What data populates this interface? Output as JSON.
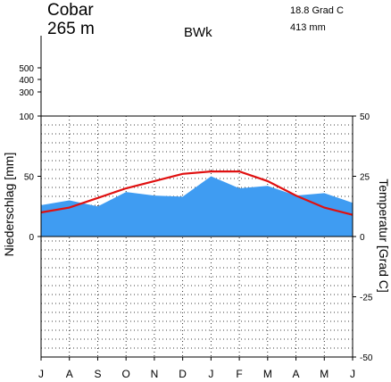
{
  "header": {
    "station": "Cobar",
    "elevation": "265 m",
    "climate_class": "BWk",
    "mean_temp": "18.8 Grad C",
    "annual_precip": "413 mm"
  },
  "chart_data": {
    "type": "area",
    "title": "Cobar",
    "x": [
      "J",
      "A",
      "S",
      "O",
      "N",
      "D",
      "J",
      "F",
      "M",
      "A",
      "M",
      "J"
    ],
    "ylabel": "Niederschlag [mm]",
    "y2label": "Temperatur [Grad C]",
    "ylim": [
      0,
      100
    ],
    "y_upper_ticks": [
      "500",
      "400",
      "300",
      "100"
    ],
    "y_left_ticks": [
      "100",
      "50",
      "0"
    ],
    "y2lim": [
      -50,
      50
    ],
    "y2_ticks": [
      "50",
      "25",
      "0",
      "-25",
      "-50"
    ],
    "grid": true,
    "series": [
      {
        "name": "Niederschlag",
        "color": "#3f9cf2",
        "values": [
          26,
          30,
          25,
          37,
          34,
          33,
          50,
          40,
          42,
          34,
          36,
          28
        ]
      },
      {
        "name": "Temperatur",
        "color": "#e01010",
        "values": [
          10,
          12,
          16,
          20,
          23,
          26,
          27,
          27,
          23,
          17,
          12,
          9
        ]
      }
    ]
  }
}
